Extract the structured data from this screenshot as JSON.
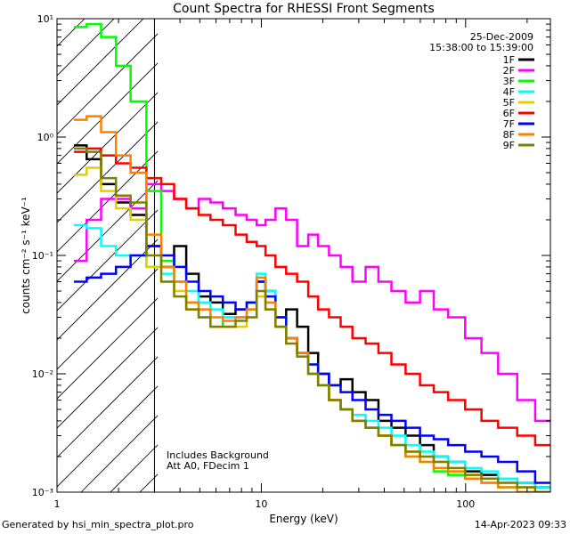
{
  "chart_data": {
    "type": "line",
    "title": "Count Spectra for RHESSI Front Segments",
    "xlabel": "Energy (keV)",
    "ylabel": "counts cm⁻² s⁻¹ keV⁻¹",
    "xscale": "log",
    "yscale": "log",
    "xlim": [
      1,
      260
    ],
    "ylim": [
      0.001,
      10
    ],
    "x_ticks": [
      {
        "value": 1,
        "label": "1"
      },
      {
        "value": 10,
        "label": "10"
      },
      {
        "value": 100,
        "label": "100"
      }
    ],
    "y_ticks": [
      {
        "value": 0.001,
        "label": "10⁻³"
      },
      {
        "value": 0.01,
        "label": "10⁻²"
      },
      {
        "value": 0.1,
        "label": "10⁻¹"
      },
      {
        "value": 1,
        "label": "10⁰"
      },
      {
        "value": 10,
        "label": "10¹"
      }
    ],
    "date": "25-Dec-2009",
    "time_range": "15:38:00 to 15:39:00",
    "excluded_region": {
      "from": 1,
      "to": 3
    },
    "annotations": [
      "Includes Background",
      "Att A0, FDecim 1"
    ],
    "series": [
      {
        "name": "1F",
        "color": "#000000",
        "x": [
          1.3,
          1.5,
          1.8,
          2.1,
          2.5,
          3.0,
          3.5,
          4.0,
          4.6,
          5.3,
          6.0,
          7.0,
          8.0,
          9.0,
          10.0,
          11.0,
          12.5,
          14.0,
          16.0,
          18.0,
          20.0,
          23.0,
          26.0,
          30.0,
          35.0,
          40.0,
          47.0,
          55.0,
          65.0,
          75.0,
          90.0,
          110.0,
          130.0,
          160.0,
          200.0,
          240.0
        ],
        "y": [
          0.85,
          0.65,
          0.4,
          0.28,
          0.22,
          0.12,
          0.08,
          0.12,
          0.07,
          0.045,
          0.04,
          0.032,
          0.035,
          0.04,
          0.06,
          0.05,
          0.03,
          0.035,
          0.025,
          0.015,
          0.01,
          0.008,
          0.009,
          0.007,
          0.006,
          0.004,
          0.0035,
          0.003,
          0.0025,
          0.002,
          0.0018,
          0.0015,
          0.0014,
          0.0013,
          0.0012,
          0.0011
        ]
      },
      {
        "name": "2F",
        "color": "#ff00ff",
        "x": [
          1.3,
          1.5,
          1.8,
          2.1,
          2.5,
          3.0,
          3.5,
          4.0,
          4.6,
          5.3,
          6.0,
          7.0,
          8.0,
          9.0,
          10.0,
          11.0,
          12.5,
          14.0,
          16.0,
          18.0,
          20.0,
          23.0,
          26.0,
          30.0,
          35.0,
          40.0,
          47.0,
          55.0,
          65.0,
          75.0,
          90.0,
          110.0,
          130.0,
          160.0,
          200.0,
          240.0
        ],
        "y": [
          0.09,
          0.2,
          0.3,
          0.3,
          0.25,
          0.4,
          0.35,
          0.3,
          0.25,
          0.3,
          0.28,
          0.25,
          0.22,
          0.2,
          0.18,
          0.2,
          0.25,
          0.2,
          0.12,
          0.15,
          0.12,
          0.1,
          0.08,
          0.06,
          0.08,
          0.06,
          0.05,
          0.04,
          0.05,
          0.035,
          0.03,
          0.02,
          0.015,
          0.01,
          0.006,
          0.004
        ]
      },
      {
        "name": "3F",
        "color": "#00ff00",
        "x": [
          1.3,
          1.5,
          1.8,
          2.1,
          2.5,
          3.0,
          3.5,
          4.0,
          4.6,
          5.3,
          6.0,
          7.0,
          8.0,
          9.0,
          10.0,
          11.0,
          12.5,
          14.0,
          16.0,
          18.0,
          20.0,
          23.0,
          26.0,
          30.0,
          35.0,
          40.0,
          47.0,
          55.0,
          65.0,
          75.0,
          90.0,
          110.0,
          130.0,
          160.0,
          200.0,
          240.0
        ],
        "y": [
          8.5,
          9.0,
          7.0,
          4.0,
          2.0,
          0.35,
          0.09,
          0.06,
          0.04,
          0.03,
          0.025,
          0.03,
          0.03,
          0.035,
          0.06,
          0.045,
          0.03,
          0.02,
          0.015,
          0.012,
          0.008,
          0.006,
          0.005,
          0.004,
          0.0035,
          0.003,
          0.0025,
          0.002,
          0.0018,
          0.0015,
          0.0014,
          0.0013,
          0.0012,
          0.0011,
          0.001,
          0.001
        ]
      },
      {
        "name": "4F",
        "color": "#00ffff",
        "x": [
          1.3,
          1.5,
          1.8,
          2.1,
          2.5,
          3.0,
          3.5,
          4.0,
          4.6,
          5.3,
          6.0,
          7.0,
          8.0,
          9.0,
          10.0,
          11.0,
          12.5,
          14.0,
          16.0,
          18.0,
          20.0,
          23.0,
          26.0,
          30.0,
          35.0,
          40.0,
          47.0,
          55.0,
          65.0,
          75.0,
          90.0,
          110.0,
          130.0,
          160.0,
          200.0,
          240.0
        ],
        "y": [
          0.18,
          0.17,
          0.12,
          0.1,
          0.1,
          0.08,
          0.07,
          0.06,
          0.05,
          0.04,
          0.035,
          0.03,
          0.03,
          0.04,
          0.07,
          0.05,
          0.03,
          0.02,
          0.015,
          0.01,
          0.008,
          0.006,
          0.005,
          0.0045,
          0.004,
          0.0035,
          0.003,
          0.0025,
          0.0022,
          0.002,
          0.0018,
          0.0016,
          0.0015,
          0.0013,
          0.0012,
          0.0011
        ]
      },
      {
        "name": "5F",
        "color": "#e0d000",
        "x": [
          1.3,
          1.5,
          1.8,
          2.1,
          2.5,
          3.0,
          3.5,
          4.0,
          4.6,
          5.3,
          6.0,
          7.0,
          8.0,
          9.0,
          10.0,
          11.0,
          12.5,
          14.0,
          16.0,
          18.0,
          20.0,
          23.0,
          26.0,
          30.0,
          35.0,
          40.0,
          47.0,
          55.0,
          65.0,
          75.0,
          90.0,
          110.0,
          130.0,
          160.0,
          200.0,
          240.0
        ],
        "y": [
          0.48,
          0.55,
          0.35,
          0.25,
          0.2,
          0.08,
          0.06,
          0.05,
          0.035,
          0.03,
          0.025,
          0.025,
          0.025,
          0.03,
          0.045,
          0.035,
          0.025,
          0.02,
          0.015,
          0.01,
          0.008,
          0.006,
          0.005,
          0.004,
          0.0035,
          0.003,
          0.0025,
          0.0022,
          0.002,
          0.0018,
          0.0015,
          0.0014,
          0.0013,
          0.0012,
          0.0011,
          0.001
        ]
      },
      {
        "name": "6F",
        "color": "#ff0000",
        "x": [
          1.3,
          1.5,
          1.8,
          2.1,
          2.5,
          3.0,
          3.5,
          4.0,
          4.6,
          5.3,
          6.0,
          7.0,
          8.0,
          9.0,
          10.0,
          11.0,
          12.5,
          14.0,
          16.0,
          18.0,
          20.0,
          23.0,
          26.0,
          30.0,
          35.0,
          40.0,
          47.0,
          55.0,
          65.0,
          75.0,
          90.0,
          110.0,
          130.0,
          160.0,
          200.0,
          240.0
        ],
        "y": [
          0.75,
          0.8,
          0.7,
          0.6,
          0.55,
          0.45,
          0.4,
          0.3,
          0.25,
          0.22,
          0.2,
          0.18,
          0.15,
          0.13,
          0.12,
          0.1,
          0.08,
          0.07,
          0.06,
          0.045,
          0.035,
          0.03,
          0.025,
          0.02,
          0.018,
          0.015,
          0.012,
          0.01,
          0.008,
          0.007,
          0.006,
          0.005,
          0.004,
          0.0035,
          0.003,
          0.0025
        ]
      },
      {
        "name": "7F",
        "color": "#0000ff",
        "x": [
          1.3,
          1.5,
          1.8,
          2.1,
          2.5,
          3.0,
          3.5,
          4.0,
          4.6,
          5.3,
          6.0,
          7.0,
          8.0,
          9.0,
          10.0,
          11.0,
          12.5,
          14.0,
          16.0,
          18.0,
          20.0,
          23.0,
          26.0,
          30.0,
          35.0,
          40.0,
          47.0,
          55.0,
          65.0,
          75.0,
          90.0,
          110.0,
          130.0,
          160.0,
          200.0,
          240.0
        ],
        "y": [
          0.06,
          0.065,
          0.07,
          0.08,
          0.1,
          0.12,
          0.1,
          0.08,
          0.06,
          0.05,
          0.045,
          0.04,
          0.035,
          0.04,
          0.06,
          0.045,
          0.03,
          0.02,
          0.015,
          0.012,
          0.01,
          0.008,
          0.007,
          0.006,
          0.005,
          0.0045,
          0.004,
          0.0035,
          0.003,
          0.0028,
          0.0025,
          0.0022,
          0.002,
          0.0018,
          0.0015,
          0.0012
        ]
      },
      {
        "name": "8F",
        "color": "#ff8000",
        "x": [
          1.3,
          1.5,
          1.8,
          2.1,
          2.5,
          3.0,
          3.5,
          4.0,
          4.6,
          5.3,
          6.0,
          7.0,
          8.0,
          9.0,
          10.0,
          11.0,
          12.5,
          14.0,
          16.0,
          18.0,
          20.0,
          23.0,
          26.0,
          30.0,
          35.0,
          40.0,
          47.0,
          55.0,
          65.0,
          75.0,
          90.0,
          110.0,
          130.0,
          160.0,
          200.0,
          240.0
        ],
        "y": [
          1.4,
          1.5,
          1.1,
          0.7,
          0.5,
          0.15,
          0.08,
          0.06,
          0.04,
          0.035,
          0.03,
          0.028,
          0.03,
          0.035,
          0.065,
          0.04,
          0.025,
          0.02,
          0.015,
          0.01,
          0.008,
          0.006,
          0.005,
          0.004,
          0.0035,
          0.003,
          0.0025,
          0.002,
          0.0018,
          0.0016,
          0.0015,
          0.0013,
          0.0012,
          0.0011,
          0.001,
          0.001
        ]
      },
      {
        "name": "9F",
        "color": "#808000",
        "x": [
          1.3,
          1.5,
          1.8,
          2.1,
          2.5,
          3.0,
          3.5,
          4.0,
          4.6,
          5.3,
          6.0,
          7.0,
          8.0,
          9.0,
          10.0,
          11.0,
          12.5,
          14.0,
          16.0,
          18.0,
          20.0,
          23.0,
          26.0,
          30.0,
          35.0,
          40.0,
          47.0,
          55.0,
          65.0,
          75.0,
          90.0,
          110.0,
          130.0,
          160.0,
          200.0,
          240.0
        ],
        "y": [
          0.8,
          0.75,
          0.45,
          0.32,
          0.28,
          0.1,
          0.06,
          0.045,
          0.035,
          0.03,
          0.025,
          0.025,
          0.028,
          0.03,
          0.05,
          0.035,
          0.025,
          0.018,
          0.014,
          0.01,
          0.008,
          0.006,
          0.005,
          0.004,
          0.0035,
          0.003,
          0.0025,
          0.0022,
          0.002,
          0.0018,
          0.0016,
          0.0014,
          0.0013,
          0.0012,
          0.0011,
          0.001
        ]
      }
    ]
  },
  "footer": {
    "left": "Generated by hsi_min_spectra_plot.pro",
    "right": "14-Apr-2023 09:33"
  }
}
